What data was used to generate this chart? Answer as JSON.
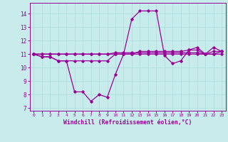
{
  "xlabel": "Windchill (Refroidissement éolien,°C)",
  "xlim": [
    -0.5,
    23.5
  ],
  "ylim": [
    6.8,
    14.8
  ],
  "yticks": [
    7,
    8,
    9,
    10,
    11,
    12,
    13,
    14
  ],
  "xticks": [
    0,
    1,
    2,
    3,
    4,
    5,
    6,
    7,
    8,
    9,
    10,
    11,
    12,
    13,
    14,
    15,
    16,
    17,
    18,
    19,
    20,
    21,
    22,
    23
  ],
  "background_color": "#c8ecec",
  "grid_color": "#aadddd",
  "line_color": "#990099",
  "series": [
    [
      11.0,
      10.8,
      10.8,
      10.5,
      10.5,
      8.2,
      8.2,
      7.5,
      8.0,
      7.8,
      9.5,
      11.0,
      13.6,
      14.2,
      14.2,
      14.2,
      10.9,
      10.3,
      10.5,
      11.3,
      11.5,
      11.0,
      11.0,
      11.2
    ],
    [
      11.0,
      10.8,
      10.8,
      10.5,
      10.5,
      10.5,
      10.5,
      10.5,
      10.5,
      10.5,
      11.0,
      11.0,
      11.0,
      11.0,
      11.0,
      11.0,
      11.0,
      11.0,
      11.0,
      11.0,
      11.0,
      11.0,
      11.0,
      11.0
    ],
    [
      11.0,
      11.0,
      11.0,
      11.0,
      11.0,
      11.0,
      11.0,
      11.0,
      11.0,
      11.0,
      11.0,
      11.0,
      11.0,
      11.2,
      11.2,
      11.2,
      11.2,
      11.2,
      11.2,
      11.3,
      11.3,
      11.0,
      11.5,
      11.2
    ],
    [
      11.0,
      11.0,
      11.0,
      11.0,
      11.0,
      11.0,
      11.0,
      11.0,
      11.0,
      11.0,
      11.1,
      11.1,
      11.1,
      11.1,
      11.1,
      11.1,
      11.1,
      11.1,
      11.1,
      11.1,
      11.1,
      11.0,
      11.2,
      11.2
    ]
  ]
}
